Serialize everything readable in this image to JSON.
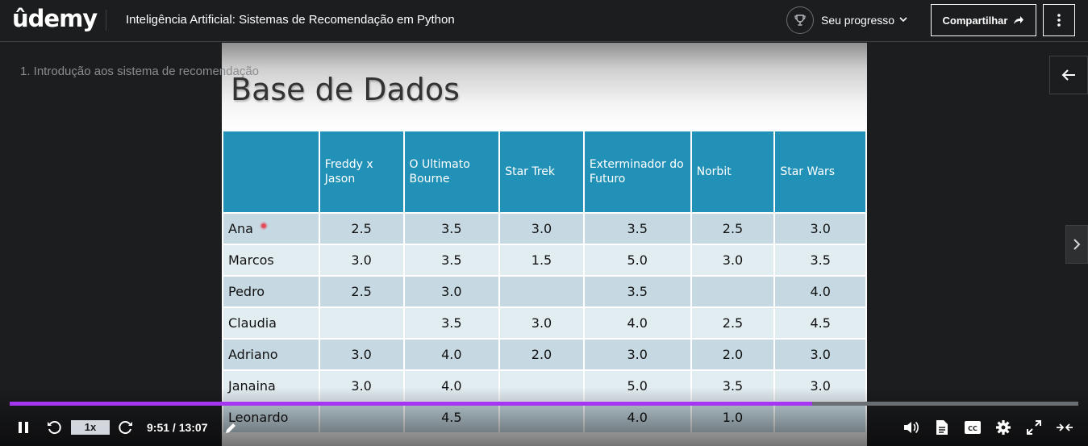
{
  "header": {
    "logo": "ûdemy",
    "course_title": "Inteligência Artificial: Sistemas de Recomendação em Python",
    "progress_label": "Seu progresso",
    "share_label": "Compartilhar"
  },
  "player": {
    "lecture_title": "1. Introdução aos sistema de recomendação",
    "slide": {
      "title": "Base de Dados",
      "columns": [
        "",
        "Freddy x Jason",
        "O Ultimato Bourne",
        "Star Trek",
        "Exterminador do Futuro",
        "Norbit",
        "Star Wars"
      ],
      "rows": [
        [
          "Ana",
          "2.5",
          "3.5",
          "3.0",
          "3.5",
          "2.5",
          "3.0"
        ],
        [
          "Marcos",
          "3.0",
          "3.5",
          "1.5",
          "5.0",
          "3.0",
          "3.5"
        ],
        [
          "Pedro",
          "2.5",
          "3.0",
          "",
          "3.5",
          "",
          "4.0"
        ],
        [
          "Claudia",
          "",
          "3.5",
          "3.0",
          "4.0",
          "2.5",
          "4.5"
        ],
        [
          "Adriano",
          "3.0",
          "4.0",
          "2.0",
          "3.0",
          "2.0",
          "3.0"
        ],
        [
          "Janaina",
          "3.0",
          "4.0",
          "",
          "5.0",
          "3.5",
          "3.0"
        ],
        [
          "Leonardo",
          "",
          "4.5",
          "",
          "4.0",
          "1.0",
          ""
        ]
      ]
    },
    "controls": {
      "speed": "1x",
      "time": "9:51 / 13:07",
      "progress_fraction": 0.751,
      "buffered_fraction": 0.751
    }
  },
  "colors": {
    "accent": "#a435f0",
    "table_header": "#2291b8",
    "row_odd": "#c6d9e2",
    "row_even": "#e2edf2"
  }
}
